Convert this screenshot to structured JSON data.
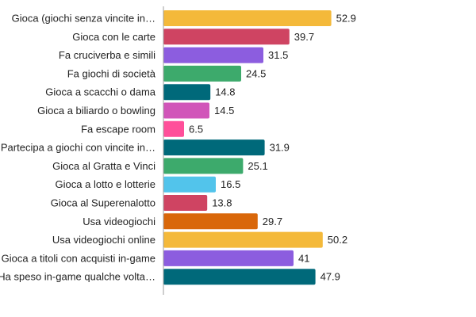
{
  "chart_data": {
    "type": "bar",
    "orientation": "horizontal",
    "title": "",
    "xlabel": "",
    "ylabel": "",
    "xlim": [
      0,
      60
    ],
    "grid": false,
    "legend": "none",
    "categories": [
      "Gioca (giochi senza vincite in…",
      "Gioca con le carte",
      "Fa cruciverba e simili",
      "Fa giochi di società",
      "Gioca a scacchi o dama",
      "Gioca a biliardo o bowling",
      "Fa escape room",
      "Partecipa a giochi con vincite in…",
      "Gioca al Gratta e Vinci",
      "Gioca a lotto e lotterie",
      "Gioca al Superenalotto",
      "Usa videogiochi",
      "Usa videogiochi online",
      "Gioca a titoli con acquisti in-game",
      "Ha speso in-game qualche volta…"
    ],
    "values": [
      52.9,
      39.7,
      31.5,
      24.5,
      14.8,
      14.5,
      6.5,
      31.9,
      25.1,
      16.5,
      13.8,
      29.7,
      50.2,
      41,
      47.9
    ],
    "value_labels": [
      "52.9",
      "39.7",
      "31.5",
      "24.5",
      "14.8",
      "14.5",
      "6.5",
      "31.9",
      "25.1",
      "16.5",
      "13.8",
      "29.7",
      "50.2",
      "41",
      "47.9"
    ],
    "colors": [
      "#f4b93a",
      "#cf4462",
      "#8c5ddf",
      "#3daa6c",
      "#00697a",
      "#d155b9",
      "#ff4f9a",
      "#00697a",
      "#3daa6c",
      "#52c4eb",
      "#cf4462",
      "#d9670a",
      "#f4b93a",
      "#8c5ddf",
      "#00697a"
    ]
  }
}
